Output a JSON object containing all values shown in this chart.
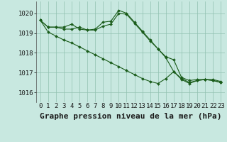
{
  "title": "Graphe pression niveau de la mer (hPa)",
  "xlabel_hours": [
    0,
    1,
    2,
    3,
    4,
    5,
    6,
    7,
    8,
    9,
    10,
    11,
    12,
    13,
    14,
    15,
    16,
    17,
    18,
    19,
    20,
    21,
    22,
    23
  ],
  "ylim": [
    1015.5,
    1020.6
  ],
  "xlim": [
    -0.5,
    23.5
  ],
  "yticks": [
    1016,
    1017,
    1018,
    1019,
    1020
  ],
  "bg_color": "#c8e8e0",
  "line_color": "#1a5c1a",
  "grid_color": "#90c0b0",
  "series1": [
    1019.65,
    1019.3,
    1019.3,
    1019.3,
    1019.45,
    1019.2,
    1019.15,
    1019.2,
    1019.55,
    1019.6,
    1020.15,
    1020.0,
    1019.55,
    1019.1,
    1018.65,
    1018.2,
    1017.8,
    1017.65,
    1016.75,
    1016.6,
    1016.65,
    1016.65,
    1016.65,
    1016.55
  ],
  "series2": [
    1019.65,
    1019.3,
    1019.3,
    1019.2,
    1019.2,
    1019.3,
    1019.15,
    1019.15,
    1019.35,
    1019.45,
    1020.0,
    1019.95,
    1019.5,
    1019.05,
    1018.6,
    1018.2,
    1017.75,
    1017.05,
    1016.7,
    1016.5,
    1016.6,
    1016.65,
    1016.6,
    1016.5
  ],
  "series3": [
    1019.65,
    1019.05,
    1018.85,
    1018.65,
    1018.5,
    1018.3,
    1018.1,
    1017.9,
    1017.7,
    1017.5,
    1017.3,
    1017.1,
    1016.9,
    1016.7,
    1016.55,
    1016.45,
    1016.7,
    1017.05,
    1016.65,
    1016.45,
    1016.6,
    1016.65,
    1016.6,
    1016.5
  ],
  "tick_fontsize": 6.5,
  "title_fontsize": 8.0,
  "marker_size": 2.0,
  "line_width": 0.8
}
